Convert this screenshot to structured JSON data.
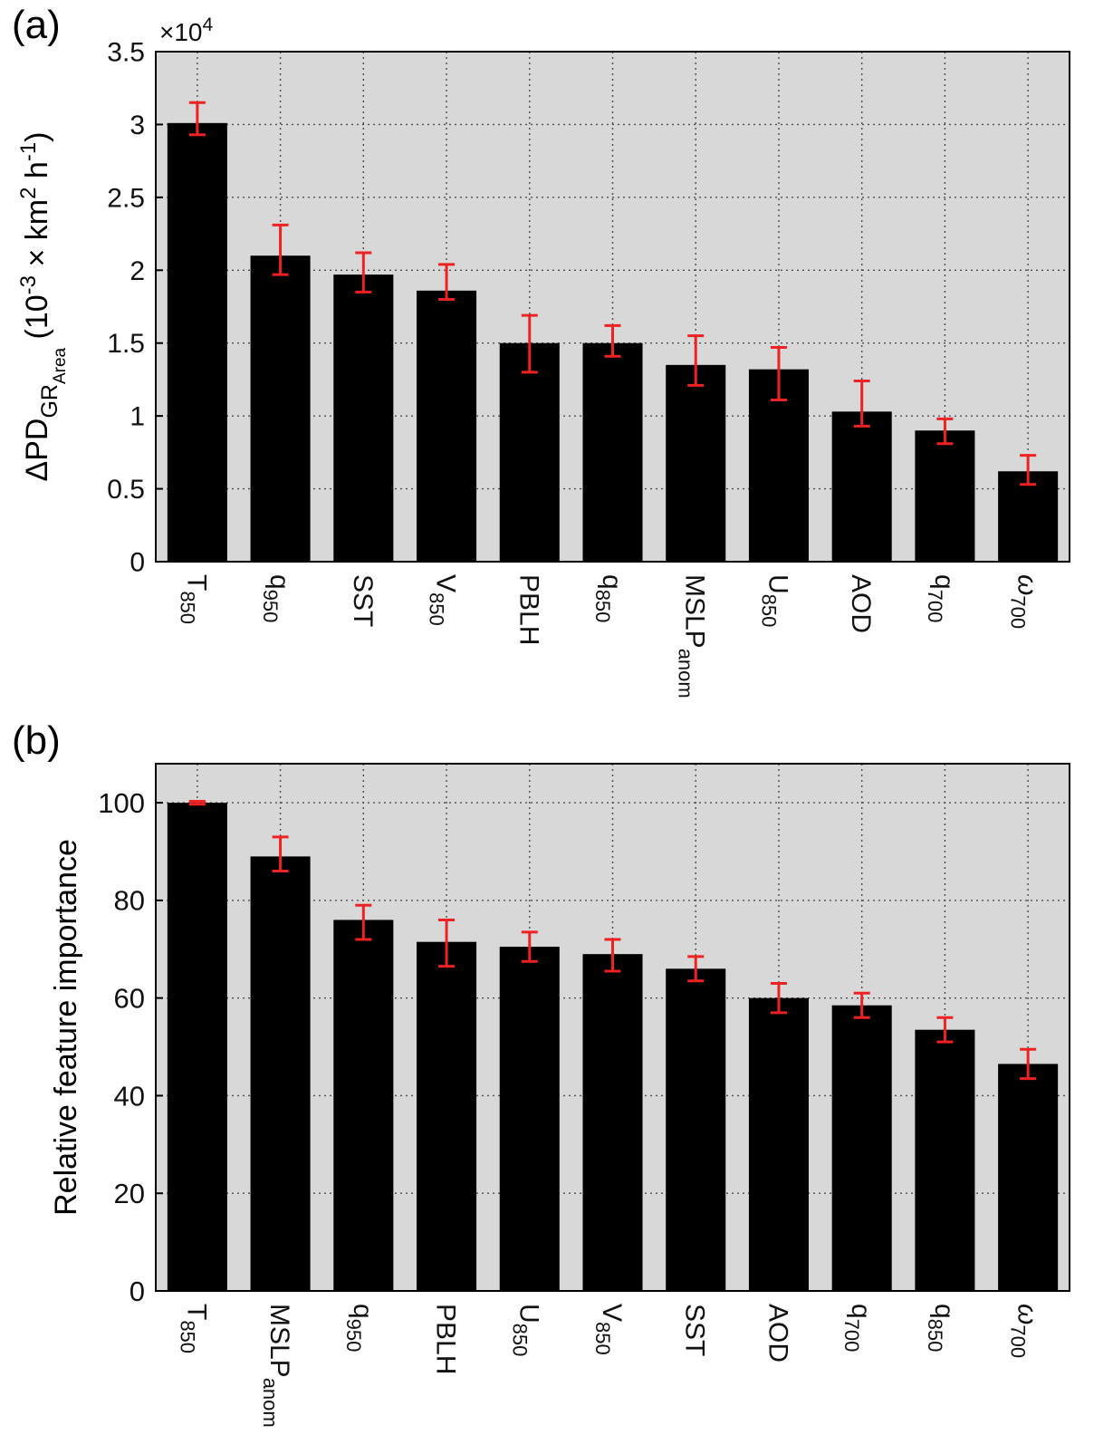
{
  "chart_data": [
    {
      "panel_label": "(a)",
      "type": "bar",
      "ylabel_parts": [
        {
          "t": "ΔPD",
          "style": "main"
        },
        {
          "t": "GR",
          "style": "sub"
        },
        {
          "t": "Area",
          "style": "subsub"
        },
        {
          "t": " (10",
          "style": "main"
        },
        {
          "t": "-3",
          "style": "sup"
        },
        {
          "t": " × km",
          "style": "main"
        },
        {
          "t": "2",
          "style": "sup"
        },
        {
          "t": " h",
          "style": "main"
        },
        {
          "t": "-1",
          "style": "sup"
        },
        {
          "t": ")",
          "style": "main"
        }
      ],
      "y_offset_text": "×10",
      "y_offset_exp": "4",
      "categories": [
        "T_850",
        "q_950",
        "SST",
        "V_850",
        "PBLH",
        "q_850",
        "MSLP_anom",
        "U_850",
        "AOD",
        "q_700",
        "ω_700"
      ],
      "values": [
        3.01,
        2.1,
        1.97,
        1.86,
        1.5,
        1.5,
        1.35,
        1.32,
        1.03,
        0.9,
        0.62
      ],
      "error_high": [
        0.14,
        0.21,
        0.15,
        0.18,
        0.19,
        0.12,
        0.2,
        0.15,
        0.21,
        0.08,
        0.11
      ],
      "error_low": [
        0.08,
        0.13,
        0.12,
        0.06,
        0.2,
        0.09,
        0.14,
        0.21,
        0.1,
        0.09,
        0.09
      ],
      "ylim": [
        0,
        3.5
      ],
      "yticks": [
        0,
        0.5,
        1,
        1.5,
        2,
        2.5,
        3,
        3.5
      ],
      "ytick_labels": [
        "0",
        "0.5",
        "1",
        "1.5",
        "2",
        "2.5",
        "3",
        "3.5"
      ],
      "grid": true,
      "bar_color": "#000000",
      "error_color": "#ee2222",
      "plot_bg": "#d8d8d8"
    },
    {
      "panel_label": "(b)",
      "type": "bar",
      "ylabel": "Relative feature importance",
      "categories": [
        "T_850",
        "MSLP_anom",
        "q_950",
        "PBLH",
        "U_850",
        "V_850",
        "SST",
        "AOD",
        "q_700",
        "q_850",
        "ω_700"
      ],
      "values": [
        100,
        89,
        76,
        71.5,
        70.5,
        69,
        66,
        60,
        58.5,
        53.5,
        46.5
      ],
      "error_high": [
        0.3,
        4.0,
        3.0,
        4.5,
        3.0,
        3.0,
        2.5,
        3.0,
        2.5,
        2.5,
        3.0
      ],
      "error_low": [
        0.3,
        3.0,
        4.0,
        5.0,
        3.0,
        3.5,
        2.5,
        3.0,
        2.5,
        2.5,
        3.0
      ],
      "ylim": [
        0,
        108
      ],
      "yticks": [
        0,
        20,
        40,
        60,
        80,
        100
      ],
      "ytick_labels": [
        "0",
        "20",
        "40",
        "60",
        "80",
        "100"
      ],
      "grid": true,
      "bar_color": "#000000",
      "error_color": "#ee2222",
      "plot_bg": "#d8d8d8"
    }
  ]
}
